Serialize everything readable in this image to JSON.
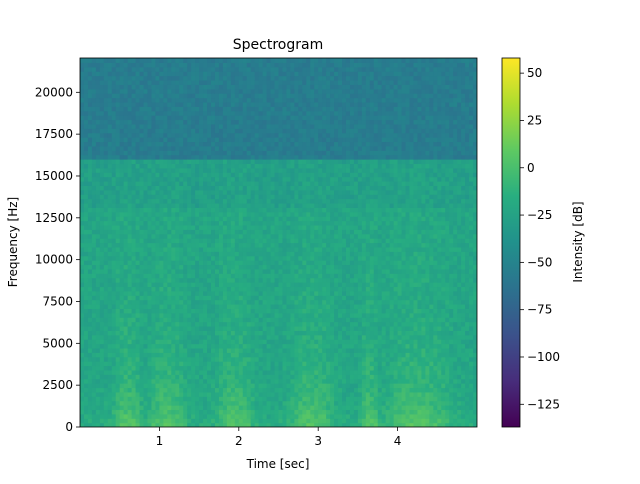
{
  "chart_data": {
    "type": "heatmap",
    "title": "Spectrogram",
    "xlabel": "Time [sec]",
    "ylabel": "Frequency [Hz]",
    "xlim": [
      0.0,
      5.0
    ],
    "ylim": [
      0,
      22050
    ],
    "x_ticks": [
      1,
      2,
      3,
      4
    ],
    "x_tick_labels": [
      "1",
      "2",
      "3",
      "4"
    ],
    "y_ticks": [
      0,
      2500,
      5000,
      7500,
      10000,
      12500,
      15000,
      17500,
      20000
    ],
    "y_tick_labels": [
      "0",
      "2500",
      "5000",
      "7500",
      "10000",
      "12500",
      "15000",
      "17500",
      "20000"
    ],
    "colorbar": {
      "label": "Intensity [dB]",
      "range": [
        -137,
        58
      ],
      "ticks": [
        50,
        25,
        0,
        -25,
        -50,
        -75,
        -100,
        -125
      ],
      "tick_labels": [
        "50",
        "25",
        "0",
        "−25",
        "−50",
        "−75",
        "−100",
        "−125"
      ],
      "colormap": "viridis"
    },
    "features": {
      "cutoff_frequency_hz": 16000,
      "level_above_cutoff_db": -55,
      "loud_segments_sec": [
        [
          0.45,
          0.75
        ],
        [
          0.9,
          1.3
        ],
        [
          1.75,
          2.15
        ],
        [
          2.7,
          3.15
        ],
        [
          3.55,
          3.75
        ],
        [
          3.9,
          4.6
        ]
      ],
      "notes": "Energy concentrated below ~5000 Hz; flat low-level band above 16000 Hz"
    },
    "grid": false
  }
}
